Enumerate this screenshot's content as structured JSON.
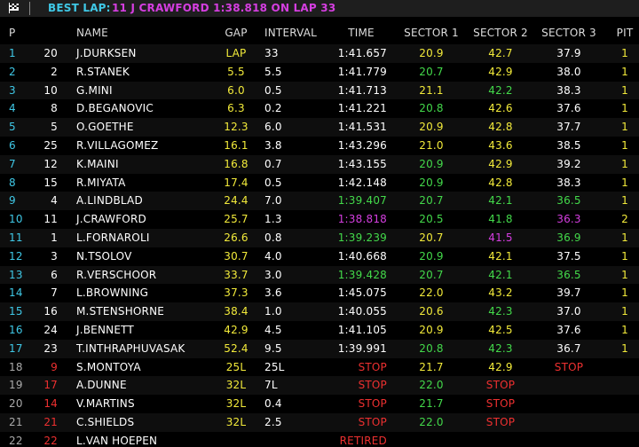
{
  "header": {
    "label": "BEST LAP:",
    "detail": "11 J CRAWFORD 1:38.818 ON LAP 33"
  },
  "table": {
    "columns": [
      "P",
      "NAME",
      "GAP",
      "INTERVAL",
      "TIME",
      "SECTOR 1",
      "SECTOR 2",
      "SECTOR 3",
      "PIT"
    ],
    "palette": {
      "c": "#3fc8e6",
      "w": "#ffffff",
      "y": "#f2ea3a",
      "g": "#43d94a",
      "p": "#d53ee0",
      "r": "#ee3030",
      "d": "#aaaaaa"
    },
    "rows": [
      {
        "cells": [
          "1",
          "20",
          "J.DURKSEN",
          "LAP",
          "33",
          "1:41.657",
          "20.9",
          "42.7",
          "37.9",
          "1"
        ],
        "colors": "cwwywwyywy"
      },
      {
        "cells": [
          "2",
          "2",
          "R.STANEK",
          "5.5",
          "5.5",
          "1:41.779",
          "20.7",
          "42.9",
          "38.0",
          "1"
        ],
        "colors": "cwwywwgywy"
      },
      {
        "cells": [
          "3",
          "10",
          "G.MINI",
          "6.0",
          "0.5",
          "1:41.713",
          "21.1",
          "42.2",
          "38.3",
          "1"
        ],
        "colors": "cwwywwygwy"
      },
      {
        "cells": [
          "4",
          "8",
          "D.BEGANOVIC",
          "6.3",
          "0.2",
          "1:41.221",
          "20.8",
          "42.6",
          "37.6",
          "1"
        ],
        "colors": "cwwywwgywy"
      },
      {
        "cells": [
          "5",
          "5",
          "O.GOETHE",
          "12.3",
          "6.0",
          "1:41.531",
          "20.9",
          "42.8",
          "37.7",
          "1"
        ],
        "colors": "cwwywwyywy"
      },
      {
        "cells": [
          "6",
          "25",
          "R.VILLAGOMEZ",
          "16.1",
          "3.8",
          "1:43.296",
          "21.0",
          "43.6",
          "38.5",
          "1"
        ],
        "colors": "cwwywwyywy"
      },
      {
        "cells": [
          "7",
          "12",
          "K.MAINI",
          "16.8",
          "0.7",
          "1:43.155",
          "20.9",
          "42.9",
          "39.2",
          "1"
        ],
        "colors": "cwwywwgywy"
      },
      {
        "cells": [
          "8",
          "15",
          "R.MIYATA",
          "17.4",
          "0.5",
          "1:42.148",
          "20.9",
          "42.8",
          "38.3",
          "1"
        ],
        "colors": "cwwywwgywy"
      },
      {
        "cells": [
          "9",
          "4",
          "A.LINDBLAD",
          "24.4",
          "7.0",
          "1:39.407",
          "20.7",
          "42.1",
          "36.5",
          "1"
        ],
        "colors": "cwwywgggqy"
      },
      {
        "cells": [
          "10",
          "11",
          "J.CRAWFORD",
          "25.7",
          "1.3",
          "1:38.818",
          "20.5",
          "41.8",
          "36.3",
          "2"
        ],
        "colors": "cwwywpggpy"
      },
      {
        "cells": [
          "11",
          "1",
          "L.FORNAROLI",
          "26.6",
          "0.8",
          "1:39.239",
          "20.7",
          "41.5",
          "36.9",
          "1"
        ],
        "colors": "cwwywgypgy"
      },
      {
        "cells": [
          "12",
          "3",
          "N.TSOLOV",
          "30.7",
          "4.0",
          "1:40.668",
          "20.9",
          "42.1",
          "37.5",
          "1"
        ],
        "colors": "cwwywwgywy"
      },
      {
        "cells": [
          "13",
          "6",
          "R.VERSCHOOR",
          "33.7",
          "3.0",
          "1:39.428",
          "20.7",
          "42.1",
          "36.5",
          "1"
        ],
        "colors": "cwwywggggy"
      },
      {
        "cells": [
          "14",
          "7",
          "L.BROWNING",
          "37.3",
          "3.6",
          "1:45.075",
          "22.0",
          "43.2",
          "39.7",
          "1"
        ],
        "colors": "cwwywwyywy"
      },
      {
        "cells": [
          "15",
          "16",
          "M.STENSHORNE",
          "38.4",
          "1.0",
          "1:40.055",
          "20.6",
          "42.3",
          "37.0",
          "1"
        ],
        "colors": "cwwywwygwy"
      },
      {
        "cells": [
          "16",
          "24",
          "J.BENNETT",
          "42.9",
          "4.5",
          "1:41.105",
          "20.9",
          "42.5",
          "37.6",
          "1"
        ],
        "colors": "cwwywwyywy"
      },
      {
        "cells": [
          "17",
          "23",
          "T.INTHRAPHUVASAK",
          "52.4",
          "9.5",
          "1:39.991",
          "20.8",
          "42.3",
          "36.7",
          "1"
        ],
        "colors": "cwwywwggwy"
      },
      {
        "cells": [
          "18",
          "9",
          "S.MONTOYA",
          "25L",
          "25L",
          "STOP",
          "21.7",
          "42.9",
          "STOP",
          null
        ],
        "colors": "drwywryyry"
      },
      {
        "cells": [
          "19",
          "17",
          "A.DUNNE",
          "32L",
          "7L",
          "STOP",
          "22.0",
          "STOP",
          null,
          null
        ],
        "colors": "drwywrgrwy"
      },
      {
        "cells": [
          "20",
          "14",
          "V.MARTINS",
          "32L",
          "0.4",
          "STOP",
          "21.7",
          "STOP",
          null,
          null
        ],
        "colors": "drwywrgrwy"
      },
      {
        "cells": [
          "21",
          "21",
          "C.SHIELDS",
          "32L",
          "2.5",
          "STOP",
          "22.0",
          "STOP",
          null,
          null
        ],
        "colors": "drwywrgrwy"
      },
      {
        "cells": [
          "22",
          "22",
          "L.VAN HOEPEN",
          null,
          null,
          "RETIRED",
          null,
          null,
          null,
          null
        ],
        "colors": "drwywrwwwy"
      }
    ]
  }
}
